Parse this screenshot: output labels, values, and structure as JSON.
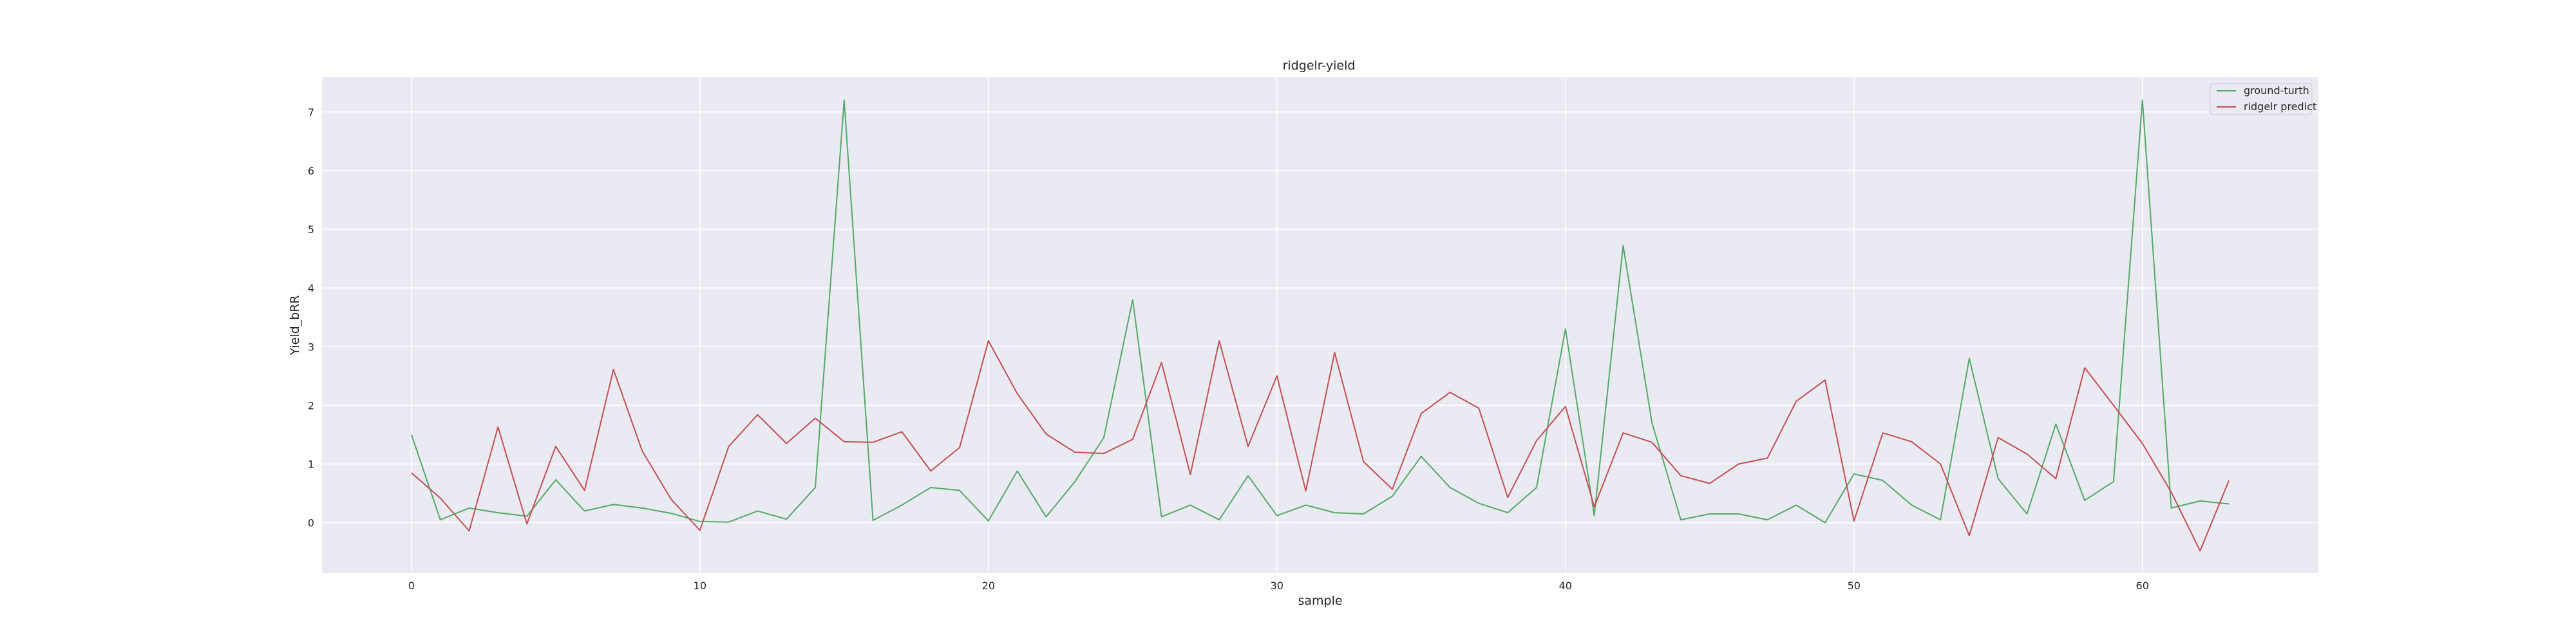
{
  "chart_data": {
    "type": "line",
    "title": "ridgelr-yield",
    "xlabel": "sample",
    "ylabel": "Yield_bRR",
    "xlim": [
      -3.1,
      66.1
    ],
    "ylim": [
      -0.86,
      7.59
    ],
    "xticks": [
      0,
      10,
      20,
      30,
      40,
      50,
      60
    ],
    "yticks": [
      0,
      1,
      2,
      3,
      4,
      5,
      6,
      7
    ],
    "grid": true,
    "legend_position": "top-right",
    "background": "#EAEAF2",
    "x": [
      0,
      1,
      2,
      3,
      4,
      5,
      6,
      7,
      8,
      9,
      10,
      11,
      12,
      13,
      14,
      15,
      16,
      17,
      18,
      19,
      20,
      21,
      22,
      23,
      24,
      25,
      26,
      27,
      28,
      29,
      30,
      31,
      32,
      33,
      34,
      35,
      36,
      37,
      38,
      39,
      40,
      41,
      42,
      43,
      44,
      45,
      46,
      47,
      48,
      49,
      50,
      51,
      52,
      53,
      54,
      55,
      56,
      57,
      58,
      59,
      60,
      61,
      62,
      63
    ],
    "series": [
      {
        "name": "ground-turth",
        "color": "#55A868",
        "values": [
          1.5,
          0.05,
          0.25,
          0.17,
          0.11,
          0.73,
          0.2,
          0.31,
          0.25,
          0.16,
          0.02,
          0.01,
          0.2,
          0.06,
          0.6,
          7.2,
          0.04,
          0.3,
          0.6,
          0.55,
          0.03,
          0.88,
          0.1,
          0.7,
          1.45,
          3.8,
          0.1,
          0.3,
          0.05,
          0.8,
          0.12,
          0.3,
          0.17,
          0.15,
          0.45,
          1.13,
          0.6,
          0.33,
          0.17,
          0.6,
          3.3,
          0.12,
          4.72,
          1.7,
          0.05,
          0.15,
          0.15,
          0.05,
          0.3,
          0.0,
          0.83,
          0.72,
          0.3,
          0.05,
          2.8,
          0.75,
          0.15,
          1.68,
          0.38,
          0.7,
          7.2,
          0.25,
          0.37,
          0.32
        ]
      },
      {
        "name": "ridgelr predict",
        "color": "#C44E52",
        "values": [
          0.85,
          0.42,
          -0.14,
          1.63,
          -0.02,
          1.3,
          0.55,
          2.61,
          1.22,
          0.4,
          -0.13,
          1.3,
          1.84,
          1.35,
          1.78,
          1.38,
          1.37,
          1.55,
          0.88,
          1.28,
          3.1,
          2.2,
          1.51,
          1.2,
          1.18,
          1.42,
          2.73,
          0.82,
          3.1,
          1.3,
          2.5,
          0.54,
          2.9,
          1.04,
          0.57,
          1.86,
          2.22,
          1.95,
          0.43,
          1.4,
          1.98,
          0.27,
          1.53,
          1.37,
          0.8,
          0.67,
          1.0,
          1.1,
          2.07,
          2.43,
          0.03,
          1.53,
          1.38,
          1.0,
          -0.22,
          1.45,
          1.17,
          0.75,
          2.64,
          2.0,
          1.35,
          0.52,
          -0.48,
          0.72
        ]
      }
    ]
  }
}
